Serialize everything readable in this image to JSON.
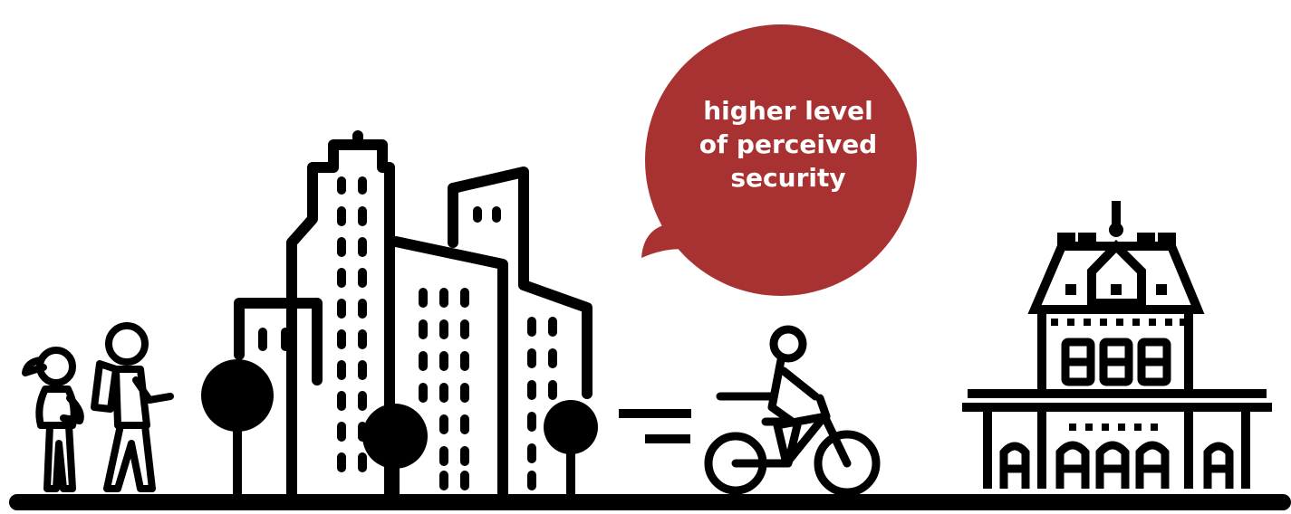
{
  "speech_bubble": {
    "lines": [
      "higher level",
      "of perceived",
      "security"
    ],
    "color": "#a83232"
  },
  "colors": {
    "ink": "#000000",
    "background": "#ffffff",
    "accent": "#a83232"
  },
  "icons": [
    "pedestrian-child-icon",
    "pedestrian-adult-backpack-icon",
    "tree-icon",
    "city-buildings-icon",
    "equals-icon",
    "cyclist-icon",
    "historic-building-icon",
    "ground-line"
  ]
}
